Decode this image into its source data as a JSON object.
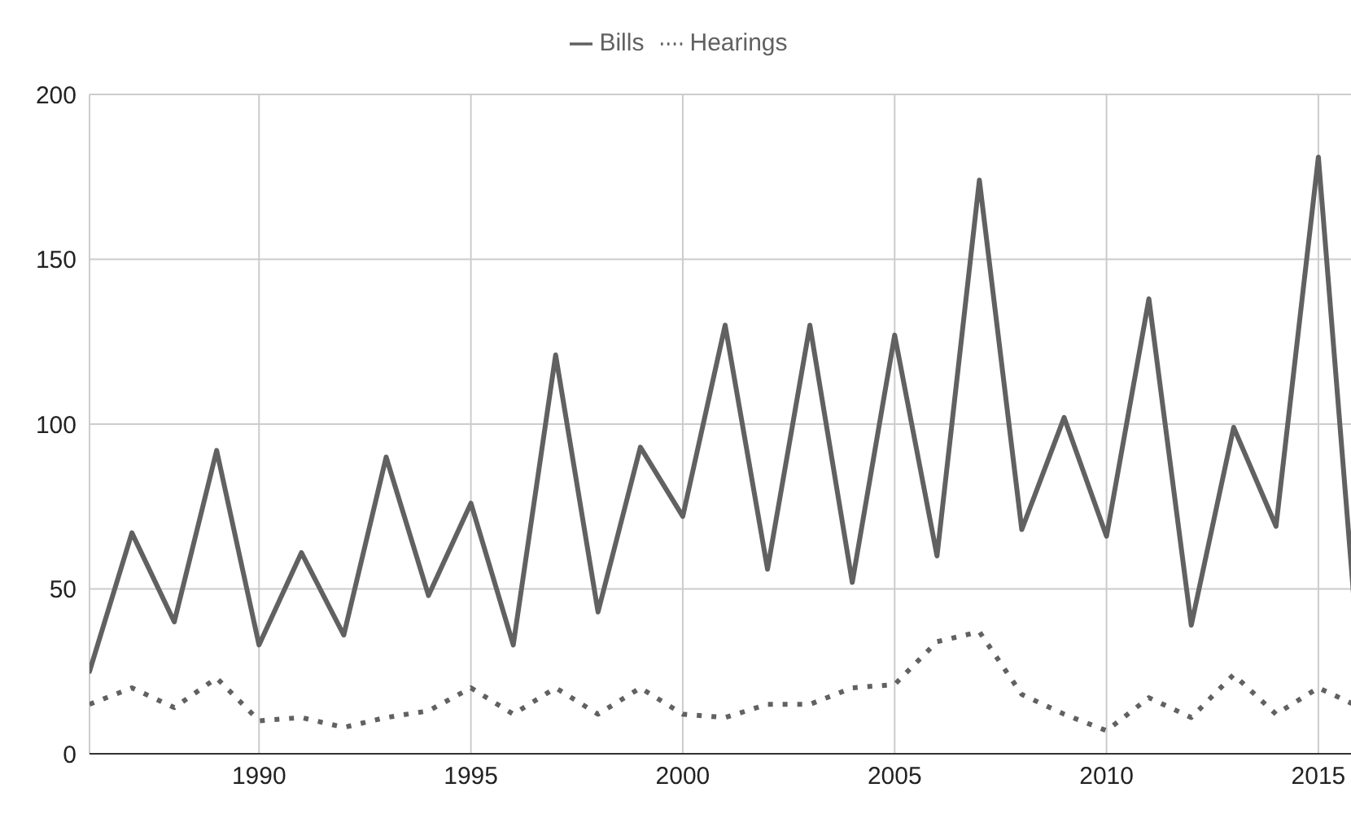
{
  "chart_data": {
    "type": "line",
    "x": [
      1986,
      1987,
      1988,
      1989,
      1990,
      1991,
      1992,
      1993,
      1994,
      1995,
      1996,
      1997,
      1998,
      1999,
      2000,
      2001,
      2002,
      2003,
      2004,
      2005,
      2006,
      2007,
      2008,
      2009,
      2010,
      2011,
      2012,
      2013,
      2014,
      2015,
      2016
    ],
    "series": [
      {
        "name": "Bills",
        "color": "#616161",
        "line_style": "solid",
        "values": [
          25,
          67,
          40,
          92,
          33,
          61,
          36,
          90,
          48,
          76,
          33,
          121,
          43,
          93,
          72,
          130,
          56,
          130,
          52,
          127,
          60,
          174,
          68,
          102,
          66,
          138,
          39,
          99,
          69,
          181,
          21
        ]
      },
      {
        "name": "Hearings",
        "color": "#616161",
        "line_style": "dotted",
        "values": [
          15,
          20,
          14,
          23,
          10,
          11,
          8,
          11,
          13,
          20,
          12,
          20,
          12,
          20,
          12,
          11,
          15,
          15,
          20,
          21,
          34,
          37,
          18,
          12,
          7,
          17,
          11,
          24,
          12,
          20,
          14
        ]
      }
    ],
    "xlim": [
      1986,
      2016
    ],
    "xticks": [
      1990,
      1995,
      2000,
      2005,
      2010,
      2015
    ],
    "ylim": [
      0,
      200
    ],
    "yticks": [
      0,
      50,
      100,
      150,
      200
    ],
    "grid": true,
    "legend": "top",
    "marker": "none"
  }
}
